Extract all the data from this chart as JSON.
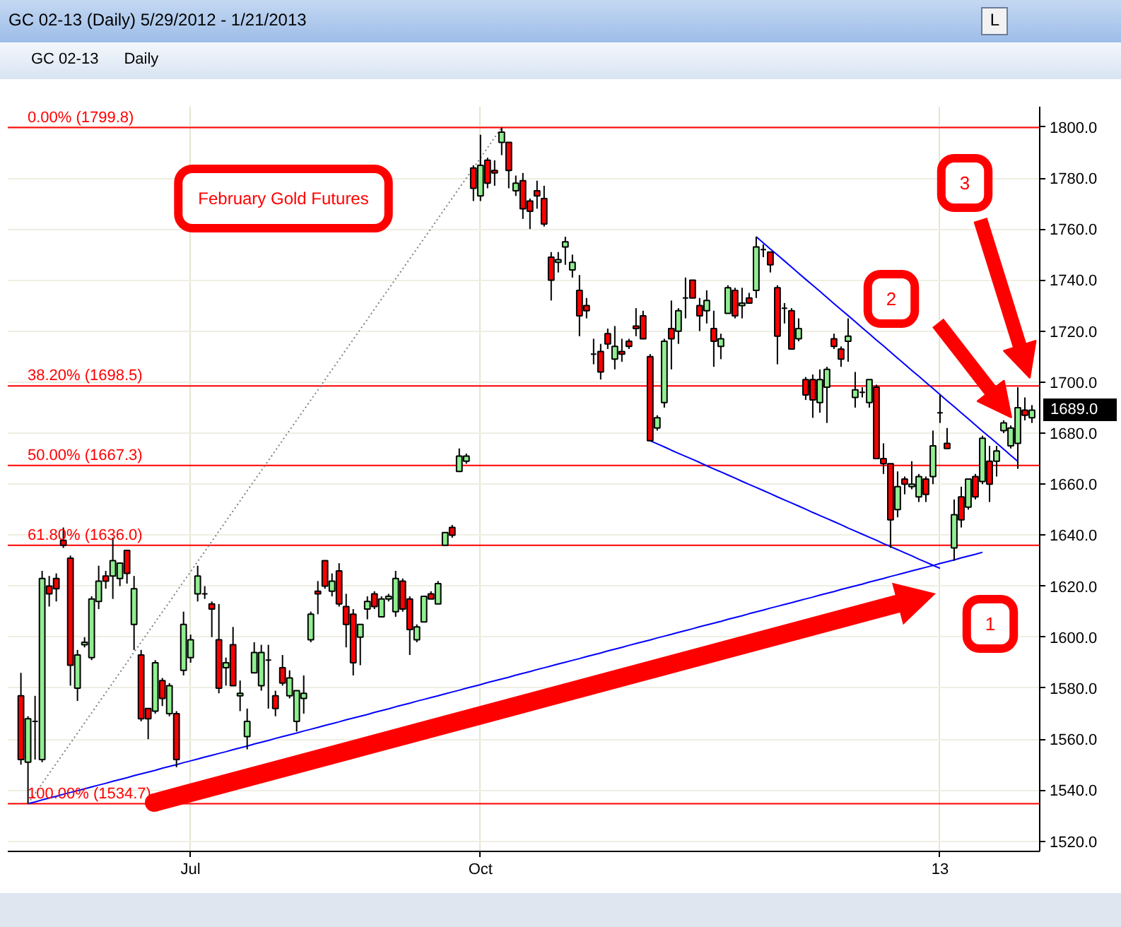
{
  "chart_data": {
    "type": "candlestick",
    "title": "GC 02-13 (Daily) 5/29/2012 - 1/21/2013",
    "categories": [
      null,
      null,
      null,
      null,
      null,
      null,
      null,
      null,
      null,
      null,
      null,
      null,
      null,
      null,
      null,
      null,
      null,
      null,
      null,
      null,
      null,
      null,
      null,
      null,
      "Jul",
      null,
      null,
      null,
      null,
      null,
      null,
      null,
      null,
      null,
      null,
      null,
      null,
      null,
      null,
      null,
      null,
      null,
      null,
      null,
      null,
      null,
      null,
      null,
      null,
      null,
      null,
      null,
      null,
      null,
      null,
      null,
      null,
      null,
      null,
      null,
      null,
      null,
      null,
      null,
      null,
      "Oct",
      null,
      null,
      null,
      null,
      null,
      null,
      null,
      null,
      null,
      null,
      null,
      null,
      null,
      null,
      null,
      null,
      null,
      null,
      null,
      null,
      null,
      null,
      null,
      null,
      null,
      null,
      null,
      null,
      null,
      null,
      null,
      null,
      null,
      null,
      null,
      null,
      null,
      null,
      null,
      null,
      null,
      null,
      null,
      null,
      null,
      null,
      null,
      null,
      null,
      null,
      null,
      null,
      null,
      null,
      null,
      null,
      null,
      null,
      null,
      null,
      null,
      null,
      null,
      null,
      "13",
      null,
      null,
      null,
      null,
      null,
      null,
      null,
      null,
      null,
      null,
      null,
      null,
      null
    ],
    "ohlc": [
      [
        1577,
        1586,
        1550,
        1552
      ],
      [
        1551,
        1569,
        1534.7,
        1568
      ],
      [
        1567,
        1577,
        1552,
        1567
      ],
      [
        1552,
        1626,
        1551,
        1623
      ],
      [
        1620,
        1624,
        1612,
        1617
      ],
      [
        1623,
        1625,
        1614,
        1619
      ],
      [
        1638,
        1643,
        1635,
        1636
      ],
      [
        1631,
        1632,
        1581,
        1589
      ],
      [
        1580,
        1595,
        1575,
        1593
      ],
      [
        1597,
        1600,
        1596,
        1598
      ],
      [
        1592,
        1616,
        1591,
        1615
      ],
      [
        1614,
        1628,
        1611,
        1622
      ],
      [
        1624,
        1626,
        1619,
        1622
      ],
      [
        1624,
        1639,
        1615,
        1630
      ],
      [
        1623,
        1629,
        1620,
        1629
      ],
      [
        1634,
        1634,
        1621,
        1625
      ],
      [
        1605,
        1624,
        1595,
        1619
      ],
      [
        1593,
        1595,
        1567,
        1568
      ],
      [
        1572,
        1572,
        1560,
        1568
      ],
      [
        1571,
        1591,
        1570,
        1590
      ],
      [
        1583,
        1584,
        1573,
        1576
      ],
      [
        1570,
        1582,
        1569,
        1581
      ],
      [
        1570,
        1571,
        1549,
        1552
      ],
      [
        1587,
        1610,
        1585,
        1605
      ],
      [
        1592,
        1601,
        1590,
        1599
      ],
      [
        1617,
        1628,
        1614,
        1624
      ],
      [
        1617,
        1620,
        1615,
        1617
      ],
      [
        1613,
        1614,
        1600,
        1611
      ],
      [
        1599,
        1613,
        1578,
        1580
      ],
      [
        1588,
        1592,
        1581,
        1590
      ],
      [
        1597,
        1604,
        1581,
        1581
      ],
      [
        1577,
        1583,
        1571,
        1578
      ],
      [
        1561,
        1572,
        1556,
        1567
      ],
      [
        1586,
        1598,
        1586,
        1594
      ],
      [
        1581,
        1597,
        1579,
        1594
      ],
      [
        1591,
        1597,
        1572,
        1591
      ],
      [
        1577,
        1579,
        1569,
        1572
      ],
      [
        1588,
        1593,
        1581,
        1582
      ],
      [
        1577,
        1587,
        1576,
        1584
      ],
      [
        1567,
        1579,
        1563,
        1579
      ],
      [
        1576,
        1585,
        1570,
        1578
      ],
      [
        1599,
        1610,
        1598,
        1609
      ],
      [
        1618,
        1622,
        1609,
        1617
      ],
      [
        1630,
        1630,
        1619,
        1620
      ],
      [
        1618,
        1625,
        1616,
        1622
      ],
      [
        1626,
        1629,
        1612,
        1613
      ],
      [
        1612,
        1617,
        1596,
        1605
      ],
      [
        1609,
        1611,
        1585,
        1590
      ],
      [
        1600,
        1605,
        1589,
        1605
      ],
      [
        1611,
        1616,
        1607,
        1614
      ],
      [
        1617,
        1618,
        1611,
        1612
      ],
      [
        1608,
        1616,
        1608,
        1615
      ],
      [
        1615,
        1617,
        1614,
        1616
      ],
      [
        1610,
        1626,
        1608,
        1623
      ],
      [
        1622,
        1623,
        1610,
        1611
      ],
      [
        1615,
        1616,
        1593,
        1603
      ],
      [
        1599,
        1605,
        1598,
        1604
      ],
      [
        1606,
        1616,
        1606,
        1616
      ],
      [
        1617,
        1618,
        1615,
        1615
      ],
      [
        1613,
        1622,
        1613,
        1621
      ],
      [
        1636,
        1641,
        1636,
        1641
      ],
      [
        1643,
        1644,
        1639,
        1640
      ],
      [
        1665,
        1674,
        1665,
        1671
      ],
      [
        1669,
        1672,
        1668,
        1671
      ],
      [
        1784,
        1785,
        1771,
        1776
      ],
      [
        1773,
        1797,
        1771,
        1785
      ],
      [
        1787,
        1788,
        1776,
        1778
      ],
      [
        1783,
        1787,
        1777,
        1782
      ],
      [
        1794,
        1799.8,
        1789,
        1798
      ],
      [
        1794,
        1794,
        1776,
        1783
      ],
      [
        1775,
        1781,
        1773,
        1778
      ],
      [
        1779,
        1782,
        1764,
        1768
      ],
      [
        1771,
        1772,
        1760,
        1767
      ],
      [
        1775,
        1779,
        1768,
        1773
      ],
      [
        1772,
        1777,
        1761,
        1762
      ],
      [
        1749,
        1751,
        1732,
        1740
      ],
      [
        1747,
        1751,
        1743,
        1748
      ],
      [
        1753,
        1757,
        1746,
        1755
      ],
      [
        1744,
        1750,
        1741,
        1747
      ],
      [
        1736,
        1742,
        1718,
        1726
      ],
      [
        1730,
        1733,
        1725,
        1728
      ],
      [
        1711,
        1717,
        1707,
        1711
      ],
      [
        1712,
        1715,
        1701,
        1704
      ],
      [
        1719,
        1721,
        1713,
        1715
      ],
      [
        1709,
        1722,
        1705,
        1714
      ],
      [
        1712,
        1717,
        1708,
        1711
      ],
      [
        1716,
        1717,
        1713,
        1714
      ],
      [
        1722,
        1729,
        1718,
        1721
      ],
      [
        1726,
        1728,
        1717,
        1717
      ],
      [
        1710,
        1711,
        1677,
        1677
      ],
      [
        1682,
        1687,
        1681,
        1686
      ],
      [
        1692,
        1717,
        1690,
        1716
      ],
      [
        1721,
        1732,
        1705,
        1717
      ],
      [
        1720,
        1729,
        1715,
        1728
      ],
      [
        1733,
        1741,
        1725,
        1733
      ],
      [
        1740,
        1740,
        1733,
        1733
      ],
      [
        1730,
        1733,
        1720,
        1726
      ],
      [
        1728,
        1736,
        1723,
        1732
      ],
      [
        1721,
        1728,
        1706,
        1716
      ],
      [
        1714,
        1719,
        1709,
        1717
      ],
      [
        1727,
        1738,
        1727,
        1737
      ],
      [
        1736,
        1737,
        1725,
        1726
      ],
      [
        1730,
        1737,
        1725,
        1731
      ],
      [
        1733,
        1735,
        1731,
        1731
      ],
      [
        1736,
        1757,
        1733,
        1753
      ],
      [
        1752,
        1754,
        1749,
        1752
      ],
      [
        1751,
        1751,
        1743,
        1746
      ],
      [
        1737,
        1738,
        1707,
        1718
      ],
      [
        1729,
        1731,
        1723,
        1729
      ],
      [
        1728,
        1729,
        1713,
        1713
      ],
      [
        1717,
        1725,
        1716,
        1721
      ],
      [
        1701,
        1702,
        1693,
        1695
      ],
      [
        1701,
        1703,
        1686,
        1693
      ],
      [
        1692,
        1705,
        1688,
        1701
      ],
      [
        1698,
        1706,
        1684,
        1705
      ],
      [
        1717,
        1719,
        1713,
        1714
      ],
      [
        1713,
        1714,
        1706,
        1709
      ],
      [
        1716,
        1725,
        1708,
        1718
      ],
      [
        1694,
        1704,
        1690,
        1697
      ],
      [
        1696,
        1698,
        1694,
        1696
      ],
      [
        1692,
        1701,
        1690,
        1701
      ],
      [
        1698,
        1699,
        1670,
        1670
      ],
      [
        1670,
        1676,
        1664,
        1668
      ],
      [
        1668,
        1668,
        1635,
        1646
      ],
      [
        1650,
        1665,
        1647,
        1659
      ],
      [
        1662,
        1663,
        1656,
        1660
      ],
      [
        1659,
        1669,
        1658,
        1660
      ],
      [
        1655,
        1664,
        1653,
        1663
      ],
      [
        1662,
        1663,
        1653,
        1656
      ],
      [
        1663,
        1681,
        1660,
        1675
      ],
      [
        1688,
        1695,
        1684,
        1688
      ],
      [
        1676,
        1682,
        1674,
        1674
      ],
      [
        1635,
        1654,
        1630,
        1648
      ],
      [
        1655,
        1659,
        1643,
        1646
      ],
      [
        1651,
        1662,
        1650,
        1662
      ],
      [
        1663,
        1664,
        1654,
        1655
      ],
      [
        1661,
        1679,
        1660,
        1678
      ],
      [
        1669,
        1675,
        1653,
        1660
      ],
      [
        1669,
        1675,
        1663,
        1673
      ],
      [
        1681,
        1685,
        1680,
        1684
      ],
      [
        1675,
        1683,
        1674,
        1682
      ],
      [
        1676,
        1698,
        1666,
        1690
      ],
      [
        1689,
        1694,
        1685,
        1687
      ],
      [
        1686,
        1691,
        1684,
        1689
      ]
    ],
    "colors": [
      "#ff0000",
      "#90ee90",
      "#000000",
      "#90ee90",
      "#ff0000",
      "#ff0000",
      "#ff0000",
      "#ff0000",
      "#90ee90",
      "#90ee90",
      "#90ee90",
      "#90ee90",
      "#ff0000",
      "#90ee90",
      "#90ee90",
      "#ff0000",
      "#90ee90",
      "#ff0000",
      "#ff0000",
      "#90ee90",
      "#ff0000",
      "#90ee90",
      "#ff0000",
      "#90ee90",
      "#90ee90",
      "#90ee90",
      "#000000",
      "#ff0000",
      "#ff0000",
      "#90ee90",
      "#ff0000",
      "#90ee90",
      "#90ee90",
      "#90ee90",
      "#90ee90",
      "#000000",
      "#ff0000",
      "#ff0000",
      "#90ee90",
      "#90ee90",
      "#90ee90",
      "#90ee90",
      "#ff0000",
      "#ff0000",
      "#90ee90",
      "#ff0000",
      "#ff0000",
      "#ff0000",
      "#90ee90",
      "#90ee90",
      "#ff0000",
      "#90ee90",
      "#90ee90",
      "#90ee90",
      "#ff0000",
      "#ff0000",
      "#90ee90",
      "#90ee90",
      "#ff0000",
      "#90ee90",
      "#90ee90",
      "#ff0000",
      "#90ee90",
      "#90ee90",
      "#ff0000",
      "#90ee90",
      "#ff0000",
      "#ff0000",
      "#90ee90",
      "#ff0000",
      "#90ee90",
      "#ff0000",
      "#ff0000",
      "#ff0000",
      "#ff0000",
      "#ff0000",
      "#90ee90",
      "#90ee90",
      "#90ee90",
      "#ff0000",
      "#ff0000",
      "#000000",
      "#ff0000",
      "#ff0000",
      "#90ee90",
      "#ff0000",
      "#ff0000",
      "#ff0000",
      "#ff0000",
      "#ff0000",
      "#90ee90",
      "#90ee90",
      "#ff0000",
      "#90ee90",
      "#000000",
      "#ff0000",
      "#ff0000",
      "#90ee90",
      "#ff0000",
      "#90ee90",
      "#90ee90",
      "#ff0000",
      "#90ee90",
      "#ff0000",
      "#90ee90",
      "#000000",
      "#ff0000",
      "#ff0000",
      "#000000",
      "#ff0000",
      "#90ee90",
      "#ff0000",
      "#ff0000",
      "#90ee90",
      "#90ee90",
      "#ff0000",
      "#ff0000",
      "#90ee90",
      "#90ee90",
      "#000000",
      "#90ee90",
      "#ff0000",
      "#ff0000",
      "#ff0000",
      "#90ee90",
      "#ff0000",
      "#90ee90",
      "#90ee90",
      "#ff0000",
      "#90ee90",
      "#000000",
      "#ff0000",
      "#90ee90",
      "#ff0000",
      "#90ee90",
      "#ff0000",
      "#90ee90",
      "#ff0000",
      "#90ee90",
      "#90ee90",
      "#90ee90",
      "#90ee90",
      "#ff0000",
      "#90ee90"
    ],
    "series": [
      {
        "type": "line",
        "color": "#0000ff",
        "values": [
          null,
          1534.7,
          1535.4,
          1536.2,
          1536.9,
          1537.6,
          1538.4,
          1539.1,
          1539.8,
          1540.5,
          1541.3,
          1542.0,
          1542.7,
          1543.5,
          1544.2,
          1544.9,
          1545.7,
          1546.4,
          1547.1,
          1547.8,
          1548.6,
          1549.3,
          1550.0,
          1550.8,
          1551.5,
          1552.2,
          1553.0,
          1553.7,
          1554.4,
          1555.1,
          1555.9,
          1556.6,
          1557.3,
          1558.1,
          1558.8,
          1559.5,
          1560.3,
          1561.0,
          1561.7,
          1562.4,
          1563.2,
          1563.9,
          1564.6,
          1565.4,
          1566.1,
          1566.8,
          1567.6,
          1568.3,
          1569.0,
          1569.7,
          1570.5,
          1571.2,
          1571.9,
          1572.7,
          1573.4,
          1574.1,
          1574.9,
          1575.6,
          1576.3,
          1577.0,
          1577.8,
          1578.5,
          1579.2,
          1580.0,
          1580.7,
          1581.4,
          1582.2,
          1582.9,
          1583.6,
          1584.3,
          1585.1,
          1585.8,
          1586.5,
          1587.3,
          1588.0,
          1588.7,
          1589.5,
          1590.2,
          1590.9,
          1591.6,
          1592.4,
          1593.1,
          1593.8,
          1594.6,
          1595.3,
          1596.0,
          1596.8,
          1597.5,
          1598.2,
          1598.9,
          1599.7,
          1600.4,
          1601.1,
          1601.9,
          1602.6,
          1603.3,
          1604.1,
          1604.8,
          1605.5,
          1606.2,
          1607.0,
          1607.7,
          1608.4,
          1609.2,
          1609.9,
          1610.6,
          1611.4,
          1612.1,
          1612.8,
          1613.5,
          1614.3,
          1615.0,
          1615.7,
          1616.5,
          1617.2,
          1617.9,
          1618.7,
          1619.4,
          1620.1,
          1620.8,
          1621.6,
          1622.3,
          1623.0,
          1623.8,
          1624.5,
          1625.2,
          1626.0,
          1626.7,
          1627.4,
          1628.1,
          1628.9,
          1629.6,
          1630.3,
          1631.1,
          1631.8,
          1632.5,
          1633.3,
          null,
          null,
          null,
          null,
          null,
          null,
          null
        ]
      },
      {
        "type": "line",
        "color": "#0000ff",
        "values": [
          null,
          null,
          null,
          null,
          null,
          null,
          null,
          null,
          null,
          null,
          null,
          null,
          null,
          null,
          null,
          null,
          null,
          null,
          null,
          null,
          null,
          null,
          null,
          null,
          null,
          null,
          null,
          null,
          null,
          null,
          null,
          null,
          null,
          null,
          null,
          null,
          null,
          null,
          null,
          null,
          null,
          null,
          null,
          null,
          null,
          null,
          null,
          null,
          null,
          null,
          null,
          null,
          null,
          null,
          null,
          null,
          null,
          null,
          null,
          null,
          null,
          null,
          null,
          null,
          null,
          null,
          null,
          null,
          null,
          null,
          null,
          null,
          null,
          null,
          null,
          null,
          null,
          null,
          null,
          null,
          null,
          null,
          null,
          null,
          null,
          null,
          null,
          null,
          null,
          1677.0,
          1675.8,
          1674.6,
          1673.3,
          1672.1,
          1670.9,
          1669.7,
          1668.5,
          1667.2,
          1666.0,
          1664.8,
          1663.6,
          1662.4,
          1661.1,
          1659.9,
          1658.7,
          1657.5,
          1656.3,
          1655.0,
          1653.8,
          1652.6,
          1651.4,
          1650.2,
          1648.9,
          1647.7,
          1646.5,
          1645.3,
          1644.1,
          1642.8,
          1641.6,
          1640.4,
          1639.2,
          1638.0,
          1636.7,
          1635.5,
          1634.3,
          1633.1,
          1631.9,
          1630.6,
          1629.4,
          1628.2,
          1627.0,
          null,
          null,
          null,
          null,
          null,
          null,
          null,
          null,
          null,
          null,
          null,
          null,
          null
        ]
      },
      {
        "type": "line",
        "color": "#0000ff",
        "values": [
          null,
          null,
          null,
          null,
          null,
          null,
          null,
          null,
          null,
          null,
          null,
          null,
          null,
          null,
          null,
          null,
          null,
          null,
          null,
          null,
          null,
          null,
          null,
          null,
          null,
          null,
          null,
          null,
          null,
          null,
          null,
          null,
          null,
          null,
          null,
          null,
          null,
          null,
          null,
          null,
          null,
          null,
          null,
          null,
          null,
          null,
          null,
          null,
          null,
          null,
          null,
          null,
          null,
          null,
          null,
          null,
          null,
          null,
          null,
          null,
          null,
          null,
          null,
          null,
          null,
          null,
          null,
          null,
          null,
          null,
          null,
          null,
          null,
          null,
          null,
          null,
          null,
          null,
          null,
          null,
          null,
          null,
          null,
          null,
          null,
          null,
          null,
          null,
          null,
          null,
          null,
          null,
          null,
          null,
          null,
          null,
          null,
          null,
          null,
          null,
          null,
          null,
          null,
          null,
          1757.0,
          1754.6,
          1752.2,
          1749.9,
          1747.5,
          1745.1,
          1742.7,
          1740.3,
          1738.0,
          1735.6,
          1733.2,
          1730.8,
          1728.4,
          1726.1,
          1723.7,
          1721.3,
          1718.9,
          1716.5,
          1714.2,
          1711.8,
          1709.4,
          1707.0,
          1704.6,
          1702.3,
          1699.9,
          1697.5,
          1695.1,
          1692.7,
          1690.4,
          1688.0,
          1685.6,
          1683.2,
          1680.8,
          1678.5,
          1676.1,
          1673.7,
          1671.3,
          1668.9,
          null,
          null
        ]
      },
      {
        "type": "line",
        "color": "#808080",
        "line_style": "dotted",
        "values": [
          null,
          1534.7,
          1538.7,
          1542.6,
          1546.6,
          1550.5,
          1554.5,
          1558.4,
          1562.4,
          1566.4,
          1570.3,
          1574.3,
          1578.2,
          1582.2,
          1586.1,
          1590.1,
          1594.1,
          1598.0,
          1602.0,
          1605.9,
          1609.9,
          1613.8,
          1617.8,
          1621.8,
          1625.7,
          1629.7,
          1633.6,
          1637.6,
          1641.5,
          1645.5,
          1649.5,
          1653.4,
          1657.4,
          1661.3,
          1665.3,
          1669.2,
          1673.2,
          1677.2,
          1681.1,
          1685.1,
          1689.0,
          1693.0,
          1696.9,
          1700.9,
          1704.9,
          1708.8,
          1712.8,
          1716.7,
          1720.7,
          1724.6,
          1728.6,
          1732.6,
          1736.5,
          1740.5,
          1744.4,
          1748.4,
          1752.3,
          1756.3,
          1760.2,
          1764.2,
          1768.2,
          1772.1,
          1776.1,
          1780.0,
          1784.0,
          1787.9,
          1791.9,
          1795.9,
          1799.8,
          null,
          null,
          null,
          null,
          null,
          null,
          null,
          null,
          null,
          null,
          null,
          null,
          null,
          null,
          null,
          null,
          null,
          null,
          null,
          null,
          null,
          null,
          null,
          null,
          null,
          null,
          null,
          null,
          null,
          null,
          null,
          null,
          null,
          null,
          null,
          null,
          null,
          null,
          null,
          null,
          null,
          null,
          null,
          null,
          null,
          null,
          null,
          null,
          null,
          null,
          null,
          null,
          null,
          null,
          null,
          null,
          null,
          null,
          null,
          null,
          null,
          null,
          null,
          null,
          null,
          null,
          null,
          null,
          null,
          null,
          null,
          null,
          null,
          null,
          null
        ]
      }
    ],
    "ref_lines": [
      {
        "axis": "y",
        "value": 1799.8,
        "label": "0.00% (1799.8)",
        "color": "#ff0000"
      },
      {
        "axis": "y",
        "value": 1698.5,
        "label": "38.20% (1698.5)",
        "color": "#ff0000"
      },
      {
        "axis": "y",
        "value": 1667.3,
        "label": "50.00% (1667.3)",
        "color": "#ff0000"
      },
      {
        "axis": "y",
        "value": 1636.0,
        "label": "61.80% (1636.0)",
        "color": "#ff0000"
      },
      {
        "axis": "y",
        "value": 1534.7,
        "label": "100.00% (1534.7)",
        "color": "#ff0000"
      }
    ],
    "annotations": [
      "February Gold Futures",
      "GC 02-13",
      "Daily",
      "L",
      "1",
      "2",
      "3",
      "1689.0"
    ],
    "ylim": [
      1516,
      1808
    ],
    "yticks": [
      {
        "value": 1520,
        "label": "1520.0"
      },
      {
        "value": 1540,
        "label": "1540.0"
      },
      {
        "value": 1560,
        "label": "1560.0"
      },
      {
        "value": 1580,
        "label": "1580.0"
      },
      {
        "value": 1600,
        "label": "1600.0"
      },
      {
        "value": 1620,
        "label": "1620.0"
      },
      {
        "value": 1640,
        "label": "1640.0"
      },
      {
        "value": 1660,
        "label": "1660.0"
      },
      {
        "value": 1680,
        "label": "1680.0"
      },
      {
        "value": 1700,
        "label": "1700.0"
      },
      {
        "value": 1720,
        "label": "1720.0"
      },
      {
        "value": 1740,
        "label": "1740.0"
      },
      {
        "value": 1760,
        "label": "1760.0"
      },
      {
        "value": 1780,
        "label": "1780.0"
      },
      {
        "value": 1800,
        "label": "1800.0"
      }
    ],
    "grid": true
  }
}
